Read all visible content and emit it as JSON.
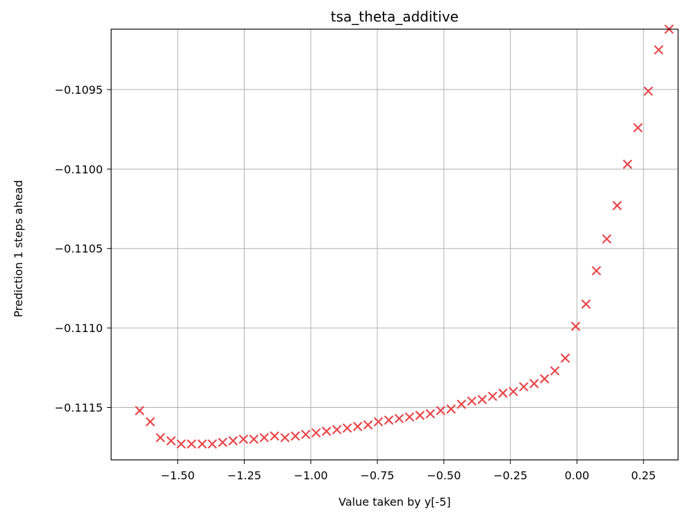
{
  "chart_data": {
    "type": "scatter",
    "title": "tsa_theta_additive",
    "xlabel": "Value taken by y[-5]",
    "ylabel": "Prediction 1 steps ahead",
    "xlim": [
      -1.75,
      0.38
    ],
    "ylim": [
      -0.11183,
      -0.10912
    ],
    "grid": true,
    "marker": "x",
    "marker_color": "#e8474a",
    "x_ticks": [
      -1.5,
      -1.25,
      -1.0,
      -0.75,
      -0.5,
      -0.25,
      0.0,
      0.25
    ],
    "x_tick_labels": [
      "−1.50",
      "−1.25",
      "−1.00",
      "−0.75",
      "−0.50",
      "−0.25",
      "0.00",
      "0.25"
    ],
    "y_ticks": [
      -0.1095,
      -0.11,
      -0.1105,
      -0.111,
      -0.1115
    ],
    "y_tick_labels": [
      "−0.1095",
      "−0.1100",
      "−0.1105",
      "−0.1110",
      "−0.1115"
    ],
    "series": [
      {
        "x": [
          -1.643,
          -1.603,
          -1.565,
          -1.525,
          -1.487,
          -1.448,
          -1.408,
          -1.37,
          -1.331,
          -1.292,
          -1.253,
          -1.214,
          -1.175,
          -1.136,
          -1.097,
          -1.058,
          -1.019,
          -0.98,
          -0.941,
          -0.902,
          -0.863,
          -0.824,
          -0.785,
          -0.746,
          -0.707,
          -0.668,
          -0.629,
          -0.59,
          -0.551,
          -0.512,
          -0.473,
          -0.434,
          -0.395,
          -0.356,
          -0.317,
          -0.278,
          -0.239,
          -0.2,
          -0.161,
          -0.122,
          -0.083,
          -0.044,
          -0.005,
          0.034,
          0.073,
          0.112,
          0.151,
          0.19,
          0.229,
          0.268,
          0.307,
          0.346
        ],
        "y": [
          -0.11152,
          -0.11159,
          -0.11169,
          -0.11171,
          -0.11173,
          -0.11173,
          -0.11173,
          -0.11173,
          -0.11172,
          -0.11171,
          -0.1117,
          -0.1117,
          -0.11169,
          -0.11168,
          -0.11169,
          -0.11168,
          -0.11167,
          -0.11166,
          -0.11165,
          -0.11164,
          -0.11163,
          -0.11162,
          -0.11161,
          -0.11159,
          -0.11158,
          -0.11157,
          -0.11156,
          -0.11155,
          -0.11154,
          -0.11152,
          -0.11151,
          -0.11148,
          -0.11146,
          -0.11145,
          -0.11143,
          -0.11141,
          -0.1114,
          -0.11137,
          -0.11135,
          -0.11132,
          -0.11127,
          -0.11119,
          -0.11099,
          -0.11085,
          -0.11064,
          -0.11044,
          -0.11023,
          -0.10997,
          -0.10974,
          -0.10951,
          -0.10925,
          -0.10912
        ]
      }
    ]
  }
}
